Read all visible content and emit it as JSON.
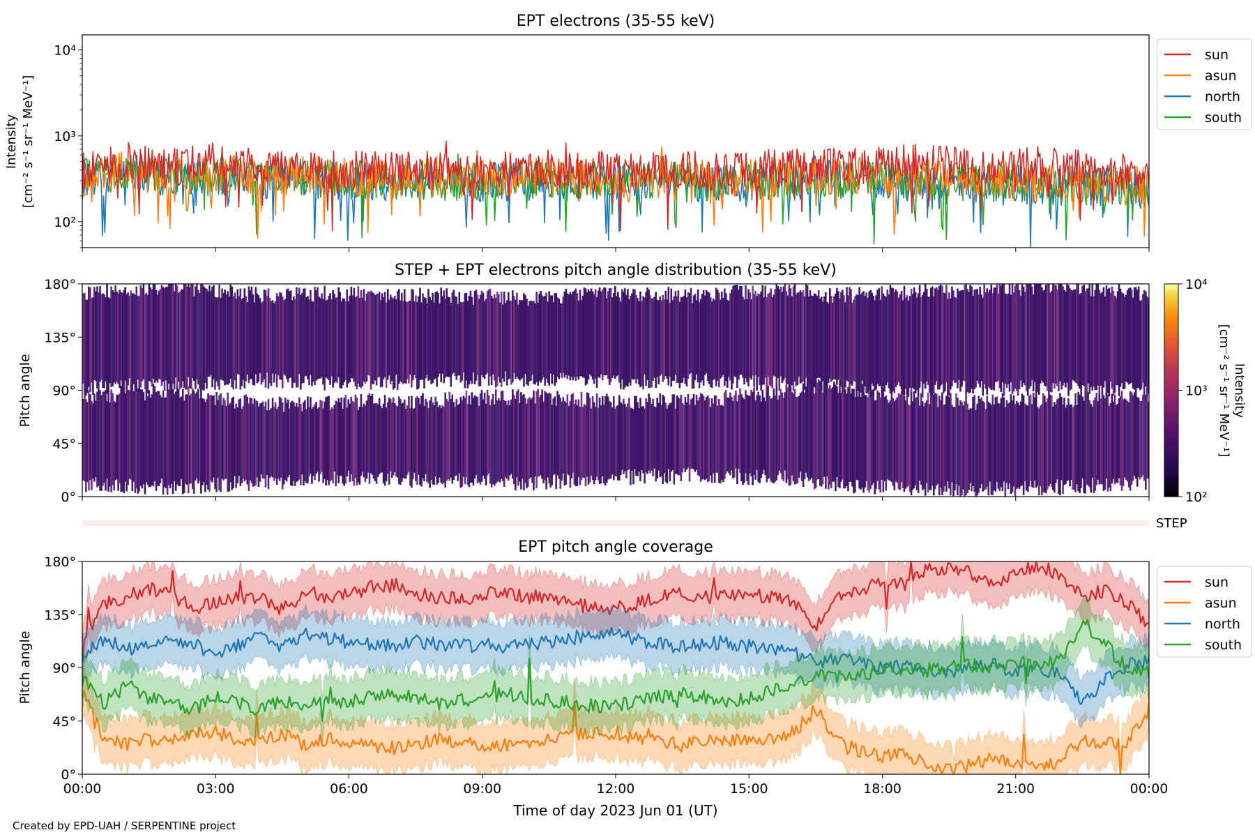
{
  "footer": {
    "credit": "Created by EPD-UAH / SERPENTINE project"
  },
  "xaxis": {
    "label": "Time of day 2023 Jun 01 (UT)",
    "ticks": [
      "00:00",
      "03:00",
      "06:00",
      "09:00",
      "12:00",
      "15:00",
      "18:00",
      "21:00",
      "00:00"
    ]
  },
  "chart_data": [
    {
      "type": "line",
      "title": "EPT electrons (35-55 keV)",
      "ylabel_line1": "Intensity",
      "ylabel_line2": "[cm⁻² s⁻¹ sr⁻¹ MeV⁻¹]",
      "yscale": "log",
      "ylim": [
        50,
        15000
      ],
      "yticks": [
        "10²",
        "10³",
        "10⁴"
      ],
      "xlim_hours": [
        0,
        24
      ],
      "legend": "outside-right-top",
      "series": [
        {
          "name": "sun",
          "color": "#d62728",
          "x": [
            0,
            0.5,
            1,
            1.5,
            2,
            2.5,
            3,
            3.5,
            4,
            4.5,
            5,
            5.5,
            6,
            6.5,
            7,
            7.5,
            8,
            8.5,
            9,
            9.5,
            10,
            10.5,
            11,
            11.5,
            12,
            12.5,
            13,
            13.5,
            14,
            14.5,
            15,
            15.5,
            16,
            16.5,
            17,
            17.5,
            18,
            18.5,
            19,
            19.5,
            20,
            20.5,
            21,
            21.5,
            22,
            22.5,
            23,
            23.5,
            24
          ],
          "y": [
            380,
            460,
            520,
            480,
            430,
            470,
            500,
            460,
            420,
            430,
            400,
            410,
            390,
            420,
            380,
            410,
            400,
            390,
            370,
            400,
            380,
            410,
            390,
            400,
            380,
            390,
            370,
            400,
            390,
            410,
            400,
            420,
            430,
            410,
            520,
            430,
            460,
            480,
            470,
            450,
            460,
            440,
            430,
            450,
            420,
            400,
            380,
            360,
            340
          ]
        },
        {
          "name": "asun",
          "color": "#ff7f0e",
          "x": [
            0,
            1,
            2,
            3,
            4,
            5,
            6,
            7,
            8,
            9,
            10,
            11,
            12,
            13,
            14,
            15,
            16,
            17,
            18,
            19,
            20,
            21,
            22,
            23,
            24
          ],
          "y": [
            330,
            400,
            360,
            380,
            340,
            350,
            330,
            320,
            340,
            310,
            330,
            320,
            300,
            320,
            310,
            320,
            330,
            340,
            330,
            320,
            310,
            300,
            290,
            280,
            270
          ]
        },
        {
          "name": "north",
          "color": "#1f77b4",
          "x": [
            0,
            1,
            2,
            3,
            4,
            5,
            6,
            7,
            8,
            9,
            10,
            11,
            12,
            13,
            14,
            15,
            16,
            17,
            18,
            19,
            20,
            21,
            22,
            23,
            24
          ],
          "y": [
            300,
            360,
            330,
            340,
            310,
            320,
            300,
            290,
            310,
            290,
            300,
            290,
            280,
            290,
            280,
            290,
            300,
            310,
            300,
            290,
            280,
            270,
            260,
            250,
            240
          ]
        },
        {
          "name": "south",
          "color": "#2ca02c",
          "x": [
            0,
            1,
            2,
            3,
            4,
            5,
            6,
            7,
            8,
            9,
            10,
            11,
            12,
            13,
            14,
            15,
            16,
            17,
            18,
            19,
            20,
            21,
            22,
            23,
            24
          ],
          "y": [
            320,
            380,
            340,
            350,
            320,
            330,
            310,
            300,
            320,
            300,
            310,
            300,
            290,
            300,
            290,
            300,
            310,
            320,
            310,
            300,
            290,
            280,
            270,
            260,
            250
          ]
        }
      ]
    },
    {
      "type": "heatmap",
      "title": "STEP + EPT electrons pitch angle distribution (35-55 keV)",
      "ylabel": "Pitch angle",
      "yticks": [
        "0°",
        "45°",
        "90°",
        "135°",
        "180°"
      ],
      "ylim_deg": [
        0,
        180
      ],
      "xlim_hours": [
        0,
        24
      ],
      "colormap": "inferno",
      "colorbar": {
        "label_line1": "Intensity",
        "label_line2": "[cm⁻² s⁻¹ sr⁻¹ MeV⁻¹]",
        "ticks": [
          "10²",
          "10³",
          "10⁴"
        ],
        "range": [
          100,
          10000
        ],
        "scale": "log"
      },
      "fill_color": "#3d1468",
      "edge_color": "#6e2a7d",
      "segments_start_h": [
        0,
        5.0,
        8.3,
        10.8,
        13.2,
        15.0,
        16.8,
        18.6,
        20.2,
        22.3
      ],
      "coverage_bands_deg": [
        {
          "x": [
            0,
            2,
            4,
            6,
            8,
            10,
            12,
            14,
            16,
            16.8,
            18,
            20,
            22,
            24
          ],
          "lo": [
            10,
            8,
            12,
            15,
            14,
            12,
            16,
            18,
            15,
            10,
            8,
            6,
            8,
            12
          ],
          "hi": [
            85,
            90,
            78,
            80,
            82,
            85,
            80,
            82,
            90,
            95,
            86,
            80,
            82,
            84
          ]
        },
        {
          "x": [
            0,
            2,
            4,
            6,
            8,
            10,
            12,
            14,
            16,
            16.8,
            18,
            20,
            22,
            24
          ],
          "lo": [
            92,
            95,
            98,
            96,
            98,
            100,
            96,
            98,
            95,
            93,
            90,
            92,
            92,
            90
          ],
          "hi": [
            172,
            178,
            170,
            172,
            170,
            168,
            172,
            170,
            176,
            170,
            172,
            174,
            178,
            172
          ]
        }
      ]
    },
    {
      "type": "bar",
      "label": "STEP",
      "color": "#fdeee9"
    },
    {
      "type": "line",
      "title": "EPT pitch angle coverage",
      "ylabel": "Pitch angle",
      "yticks": [
        "0°",
        "45°",
        "90°",
        "135°",
        "180°"
      ],
      "ylim_deg": [
        0,
        180
      ],
      "xlim_hours": [
        0,
        24
      ],
      "legend": "outside-right-top",
      "band_halfwidth_deg": 20,
      "series": [
        {
          "name": "sun",
          "color": "#d62728",
          "x": [
            0,
            0.5,
            1,
            1.5,
            2,
            2.5,
            3,
            3.5,
            4,
            4.5,
            5,
            5.5,
            6,
            6.5,
            7,
            7.5,
            8,
            8.5,
            9,
            9.5,
            10,
            10.5,
            11,
            11.5,
            12,
            12.5,
            13,
            13.5,
            14,
            14.5,
            15,
            15.5,
            16,
            16.5,
            17,
            17.5,
            18,
            18.5,
            19,
            19.5,
            20,
            20.5,
            21,
            21.5,
            22,
            22.5,
            23,
            23.5,
            24
          ],
          "y": [
            110,
            145,
            150,
            158,
            152,
            140,
            145,
            150,
            148,
            140,
            155,
            150,
            152,
            158,
            160,
            155,
            150,
            148,
            152,
            155,
            150,
            150,
            146,
            140,
            140,
            145,
            150,
            152,
            150,
            150,
            152,
            150,
            145,
            125,
            150,
            155,
            163,
            160,
            172,
            175,
            170,
            160,
            172,
            175,
            170,
            150,
            155,
            145,
            125
          ]
        },
        {
          "name": "asun",
          "color": "#ff7f0e",
          "x": [
            0,
            0.5,
            1,
            1.5,
            2,
            2.5,
            3,
            3.5,
            4,
            4.5,
            5,
            5.5,
            6,
            6.5,
            7,
            7.5,
            8,
            8.5,
            9,
            9.5,
            10,
            10.5,
            11,
            11.5,
            12,
            12.5,
            13,
            13.5,
            14,
            14.5,
            15,
            15.5,
            16,
            16.5,
            17,
            17.5,
            18,
            18.5,
            19,
            19.5,
            20,
            20.5,
            21,
            21.5,
            22,
            22.5,
            23,
            23.5,
            24
          ],
          "y": [
            70,
            30,
            25,
            30,
            28,
            35,
            35,
            30,
            28,
            35,
            25,
            30,
            28,
            25,
            22,
            25,
            30,
            28,
            25,
            24,
            28,
            30,
            32,
            35,
            35,
            30,
            28,
            25,
            28,
            30,
            28,
            30,
            35,
            55,
            28,
            20,
            15,
            18,
            8,
            5,
            8,
            15,
            8,
            5,
            10,
            30,
            25,
            28,
            55
          ]
        },
        {
          "name": "north",
          "color": "#1f77b4",
          "x": [
            0,
            0.5,
            1,
            1.5,
            2,
            2.5,
            3,
            3.5,
            4,
            4.5,
            5,
            5.5,
            6,
            6.5,
            7,
            7.5,
            8,
            8.5,
            9,
            9.5,
            10,
            10.5,
            11,
            11.5,
            12,
            12.5,
            13,
            13.5,
            14,
            14.5,
            15,
            15.5,
            16,
            16.5,
            17,
            17.5,
            18,
            18.5,
            19,
            19.5,
            20,
            20.5,
            21,
            21.5,
            22,
            22.5,
            23,
            23.5,
            24
          ],
          "y": [
            100,
            115,
            105,
            110,
            115,
            110,
            100,
            110,
            115,
            108,
            118,
            115,
            112,
            110,
            108,
            112,
            110,
            108,
            110,
            108,
            110,
            112,
            115,
            118,
            118,
            114,
            110,
            108,
            110,
            112,
            108,
            105,
            102,
            95,
            98,
            95,
            90,
            92,
            88,
            85,
            90,
            92,
            88,
            90,
            85,
            60,
            80,
            92,
            95
          ]
        },
        {
          "name": "south",
          "color": "#2ca02c",
          "x": [
            0,
            0.5,
            1,
            1.5,
            2,
            2.5,
            3,
            3.5,
            4,
            4.5,
            5,
            5.5,
            6,
            6.5,
            7,
            7.5,
            8,
            8.5,
            9,
            9.5,
            10,
            10.5,
            11,
            11.5,
            12,
            12.5,
            13,
            13.5,
            14,
            14.5,
            15,
            15.5,
            16,
            16.5,
            17,
            17.5,
            18,
            18.5,
            19,
            19.5,
            20,
            20.5,
            21,
            21.5,
            22,
            22.5,
            23,
            23.5,
            24
          ],
          "y": [
            80,
            60,
            75,
            65,
            60,
            55,
            65,
            60,
            55,
            62,
            58,
            60,
            62,
            65,
            68,
            65,
            60,
            62,
            65,
            68,
            65,
            62,
            60,
            58,
            58,
            62,
            65,
            68,
            65,
            62,
            65,
            70,
            75,
            85,
            82,
            85,
            88,
            90,
            88,
            90,
            92,
            90,
            95,
            92,
            95,
            130,
            110,
            90,
            85
          ]
        }
      ]
    }
  ]
}
